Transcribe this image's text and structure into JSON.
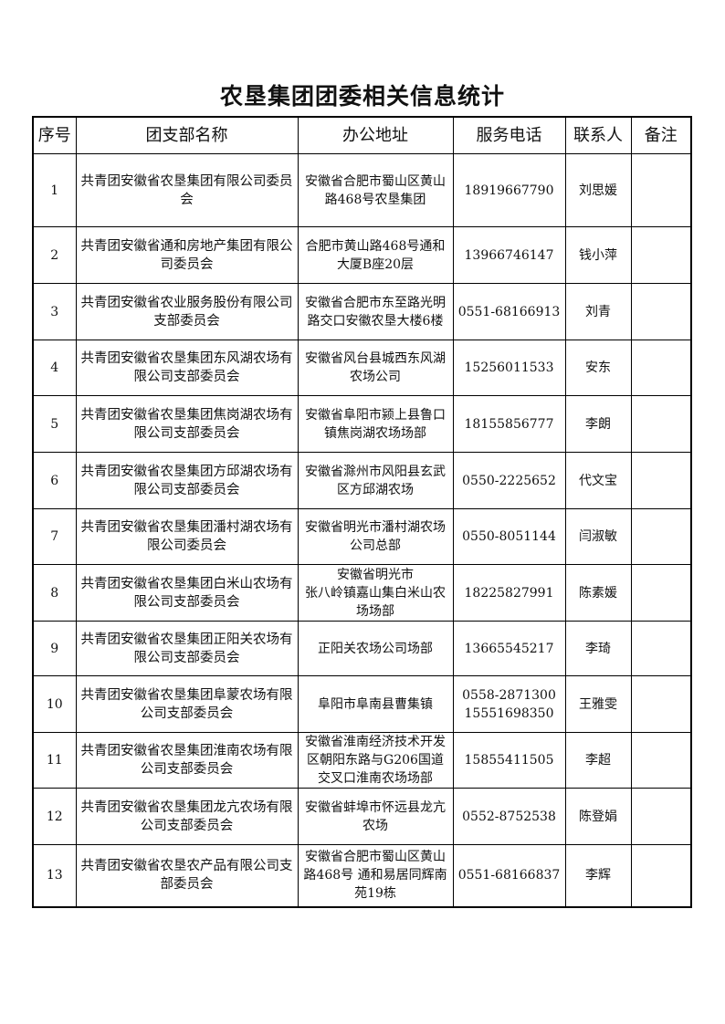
{
  "title": "农垦集团团委相关信息统计",
  "columns": [
    "序号",
    "团支部名称",
    "办公地址",
    "服务电话",
    "联系人",
    "备注"
  ],
  "rows": [
    {
      "no": "1",
      "name": "共青团安徽省农垦集团有限公司委员会",
      "address": "安徽省合肥市蜀山区黄山路468号农垦集团",
      "phone": "18919667790",
      "contact": "刘思媛",
      "note": ""
    },
    {
      "no": "2",
      "name": "共青团安徽省通和房地产集团有限公司委员会",
      "address": "合肥市黄山路468号通和大厦B座20层",
      "phone": "13966746147",
      "contact": "钱小萍",
      "note": ""
    },
    {
      "no": "3",
      "name": "共青团安徽省农业服务股份有限公司支部委员会",
      "address": "安徽省合肥市东至路光明路交口安徽农垦大楼6楼",
      "phone": "0551-68166913",
      "contact": "刘青",
      "note": ""
    },
    {
      "no": "4",
      "name": "共青团安徽省农垦集团东风湖农场有限公司支部委员会",
      "address": "安徽省风台县城西东风湖农场公司",
      "phone": "15256011533",
      "contact": "安东",
      "note": ""
    },
    {
      "no": "5",
      "name": "共青团安徽省农垦集团焦岗湖农场有限公司支部委员会",
      "address": "安徽省阜阳市颍上县鲁口镇焦岗湖农场场部",
      "phone": "18155856777",
      "contact": "李朗",
      "note": ""
    },
    {
      "no": "6",
      "name": "共青团安徽省农垦集团方邱湖农场有限公司支部委员会",
      "address": "安徽省滁州市风阳县玄武区方邱湖农场",
      "phone": "0550-2225652",
      "contact": "代文宝",
      "note": ""
    },
    {
      "no": "7",
      "name": "共青团安徽省农垦集团潘村湖农场有限公司委员会",
      "address": "安徽省明光市潘村湖农场公司总部",
      "phone": "0550-8051144",
      "contact": "闫淑敏",
      "note": ""
    },
    {
      "no": "8",
      "name": "共青团安徽省农垦集团白米山农场有限公司支部委员会",
      "address": "安徽省明光市\n张八岭镇嘉山集白米山农场场部",
      "phone": "18225827991",
      "contact": "陈素媛",
      "note": ""
    },
    {
      "no": "9",
      "name": "共青团安徽省农垦集团正阳关农场有限公司支部委员会",
      "address": "正阳关农场公司场部",
      "phone": "13665545217",
      "contact": "李琦",
      "note": ""
    },
    {
      "no": "10",
      "name": "共青团安徽省农垦集团阜蒙农场有限公司支部委员会",
      "address": "阜阳市阜南县曹集镇",
      "phone": "0558-2871300\n15551698350",
      "contact": "王雅雯",
      "note": ""
    },
    {
      "no": "11",
      "name": "共青团安徽省农垦集团淮南农场有限公司支部委员会",
      "address": "安徽省淮南经济技术开发区朝阳东路与G206国道交叉口淮南农场场部",
      "phone": "15855411505",
      "contact": "李超",
      "note": ""
    },
    {
      "no": "12",
      "name": "共青团安徽省农垦集团龙亢农场有限公司支部委员会",
      "address": "安徽省蚌埠市怀远县龙亢农场",
      "phone": "0552-8752538",
      "contact": "陈登娟",
      "note": ""
    },
    {
      "no": "13",
      "name": "共青团安徽省农垦农产品有限公司支部委员会",
      "address": "安徽省合肥市蜀山区黄山路468号 通和易居同辉南苑19栋",
      "phone": "0551-68166837",
      "contact": "李辉",
      "note": ""
    }
  ]
}
